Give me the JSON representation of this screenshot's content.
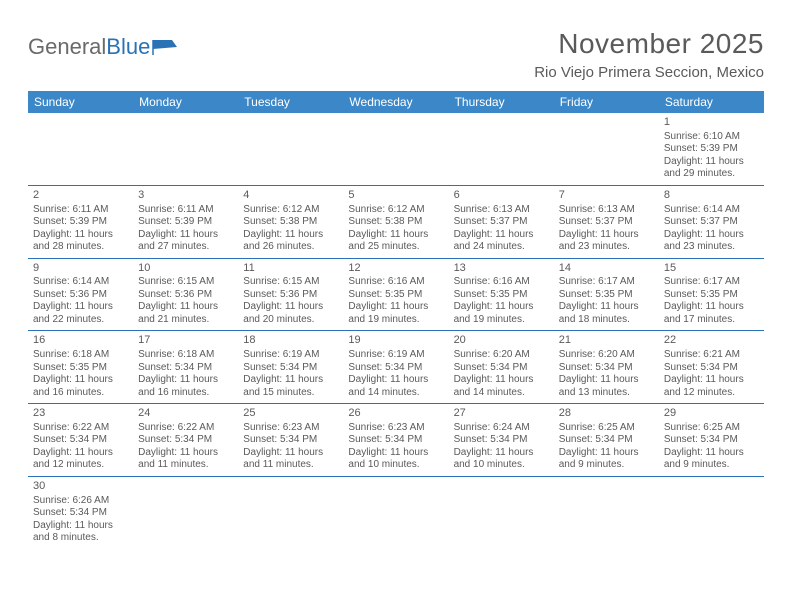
{
  "logo": {
    "text1": "General",
    "text2": "Blue"
  },
  "title": "November 2025",
  "location": "Rio Viejo Primera Seccion, Mexico",
  "colors": {
    "header_bg": "#3b87c8",
    "header_text": "#ffffff",
    "border": "#2a72b5",
    "text": "#5a5a5a",
    "logo_gray": "#6a6a6a",
    "logo_blue": "#2a72b5",
    "background": "#ffffff"
  },
  "typography": {
    "title_fontsize": 28,
    "location_fontsize": 15,
    "dayheader_fontsize": 12,
    "cell_fontsize": 10,
    "logo_fontsize": 22
  },
  "day_headers": [
    "Sunday",
    "Monday",
    "Tuesday",
    "Wednesday",
    "Thursday",
    "Friday",
    "Saturday"
  ],
  "weeks": [
    [
      null,
      null,
      null,
      null,
      null,
      null,
      {
        "n": "1",
        "sr": "Sunrise: 6:10 AM",
        "ss": "Sunset: 5:39 PM",
        "dl": "Daylight: 11 hours and 29 minutes."
      }
    ],
    [
      {
        "n": "2",
        "sr": "Sunrise: 6:11 AM",
        "ss": "Sunset: 5:39 PM",
        "dl": "Daylight: 11 hours and 28 minutes."
      },
      {
        "n": "3",
        "sr": "Sunrise: 6:11 AM",
        "ss": "Sunset: 5:39 PM",
        "dl": "Daylight: 11 hours and 27 minutes."
      },
      {
        "n": "4",
        "sr": "Sunrise: 6:12 AM",
        "ss": "Sunset: 5:38 PM",
        "dl": "Daylight: 11 hours and 26 minutes."
      },
      {
        "n": "5",
        "sr": "Sunrise: 6:12 AM",
        "ss": "Sunset: 5:38 PM",
        "dl": "Daylight: 11 hours and 25 minutes."
      },
      {
        "n": "6",
        "sr": "Sunrise: 6:13 AM",
        "ss": "Sunset: 5:37 PM",
        "dl": "Daylight: 11 hours and 24 minutes."
      },
      {
        "n": "7",
        "sr": "Sunrise: 6:13 AM",
        "ss": "Sunset: 5:37 PM",
        "dl": "Daylight: 11 hours and 23 minutes."
      },
      {
        "n": "8",
        "sr": "Sunrise: 6:14 AM",
        "ss": "Sunset: 5:37 PM",
        "dl": "Daylight: 11 hours and 23 minutes."
      }
    ],
    [
      {
        "n": "9",
        "sr": "Sunrise: 6:14 AM",
        "ss": "Sunset: 5:36 PM",
        "dl": "Daylight: 11 hours and 22 minutes."
      },
      {
        "n": "10",
        "sr": "Sunrise: 6:15 AM",
        "ss": "Sunset: 5:36 PM",
        "dl": "Daylight: 11 hours and 21 minutes."
      },
      {
        "n": "11",
        "sr": "Sunrise: 6:15 AM",
        "ss": "Sunset: 5:36 PM",
        "dl": "Daylight: 11 hours and 20 minutes."
      },
      {
        "n": "12",
        "sr": "Sunrise: 6:16 AM",
        "ss": "Sunset: 5:35 PM",
        "dl": "Daylight: 11 hours and 19 minutes."
      },
      {
        "n": "13",
        "sr": "Sunrise: 6:16 AM",
        "ss": "Sunset: 5:35 PM",
        "dl": "Daylight: 11 hours and 19 minutes."
      },
      {
        "n": "14",
        "sr": "Sunrise: 6:17 AM",
        "ss": "Sunset: 5:35 PM",
        "dl": "Daylight: 11 hours and 18 minutes."
      },
      {
        "n": "15",
        "sr": "Sunrise: 6:17 AM",
        "ss": "Sunset: 5:35 PM",
        "dl": "Daylight: 11 hours and 17 minutes."
      }
    ],
    [
      {
        "n": "16",
        "sr": "Sunrise: 6:18 AM",
        "ss": "Sunset: 5:35 PM",
        "dl": "Daylight: 11 hours and 16 minutes."
      },
      {
        "n": "17",
        "sr": "Sunrise: 6:18 AM",
        "ss": "Sunset: 5:34 PM",
        "dl": "Daylight: 11 hours and 16 minutes."
      },
      {
        "n": "18",
        "sr": "Sunrise: 6:19 AM",
        "ss": "Sunset: 5:34 PM",
        "dl": "Daylight: 11 hours and 15 minutes."
      },
      {
        "n": "19",
        "sr": "Sunrise: 6:19 AM",
        "ss": "Sunset: 5:34 PM",
        "dl": "Daylight: 11 hours and 14 minutes."
      },
      {
        "n": "20",
        "sr": "Sunrise: 6:20 AM",
        "ss": "Sunset: 5:34 PM",
        "dl": "Daylight: 11 hours and 14 minutes."
      },
      {
        "n": "21",
        "sr": "Sunrise: 6:20 AM",
        "ss": "Sunset: 5:34 PM",
        "dl": "Daylight: 11 hours and 13 minutes."
      },
      {
        "n": "22",
        "sr": "Sunrise: 6:21 AM",
        "ss": "Sunset: 5:34 PM",
        "dl": "Daylight: 11 hours and 12 minutes."
      }
    ],
    [
      {
        "n": "23",
        "sr": "Sunrise: 6:22 AM",
        "ss": "Sunset: 5:34 PM",
        "dl": "Daylight: 11 hours and 12 minutes."
      },
      {
        "n": "24",
        "sr": "Sunrise: 6:22 AM",
        "ss": "Sunset: 5:34 PM",
        "dl": "Daylight: 11 hours and 11 minutes."
      },
      {
        "n": "25",
        "sr": "Sunrise: 6:23 AM",
        "ss": "Sunset: 5:34 PM",
        "dl": "Daylight: 11 hours and 11 minutes."
      },
      {
        "n": "26",
        "sr": "Sunrise: 6:23 AM",
        "ss": "Sunset: 5:34 PM",
        "dl": "Daylight: 11 hours and 10 minutes."
      },
      {
        "n": "27",
        "sr": "Sunrise: 6:24 AM",
        "ss": "Sunset: 5:34 PM",
        "dl": "Daylight: 11 hours and 10 minutes."
      },
      {
        "n": "28",
        "sr": "Sunrise: 6:25 AM",
        "ss": "Sunset: 5:34 PM",
        "dl": "Daylight: 11 hours and 9 minutes."
      },
      {
        "n": "29",
        "sr": "Sunrise: 6:25 AM",
        "ss": "Sunset: 5:34 PM",
        "dl": "Daylight: 11 hours and 9 minutes."
      }
    ],
    [
      {
        "n": "30",
        "sr": "Sunrise: 6:26 AM",
        "ss": "Sunset: 5:34 PM",
        "dl": "Daylight: 11 hours and 8 minutes."
      },
      null,
      null,
      null,
      null,
      null,
      null
    ]
  ]
}
